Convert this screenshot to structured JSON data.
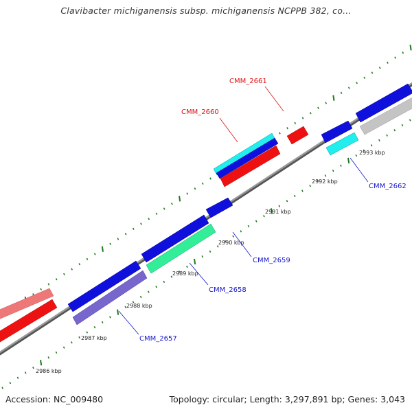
{
  "title": "Clavibacter michiganensis subsp. michiganensis NCPPB 382, co...",
  "accession_text": "Accession: NC_009480",
  "summary_text": "Topology: circular; Length: 3,297,891 bp; Genes: 3,043",
  "scale_labels": [
    "2986 kbp",
    "2987 kbp",
    "2988 kbp",
    "2989 kbp",
    "2990 kbp",
    "2991 kbp",
    "2992 kbp",
    "2993 kbp"
  ],
  "gene_labels": {
    "cmm_2657": "CMM_2657",
    "cmm_2658": "CMM_2658",
    "cmm_2659": "CMM_2659",
    "cmm_2660": "CMM_2660",
    "cmm_2661": "CMM_2661",
    "cmm_2662": "CMM_2662"
  },
  "colors": {
    "backbone": "#8a8a8a",
    "tick": "#1e7a1e",
    "blue": "#1010dd",
    "red": "#ee1111",
    "pink": "#ee7777",
    "cyan": "#22eeee",
    "aqua_green": "#33ee99",
    "lavender": "#7766cc",
    "gray": "#c4c4c4",
    "label_blue": "#1515cc",
    "label_red": "#dd1111"
  }
}
